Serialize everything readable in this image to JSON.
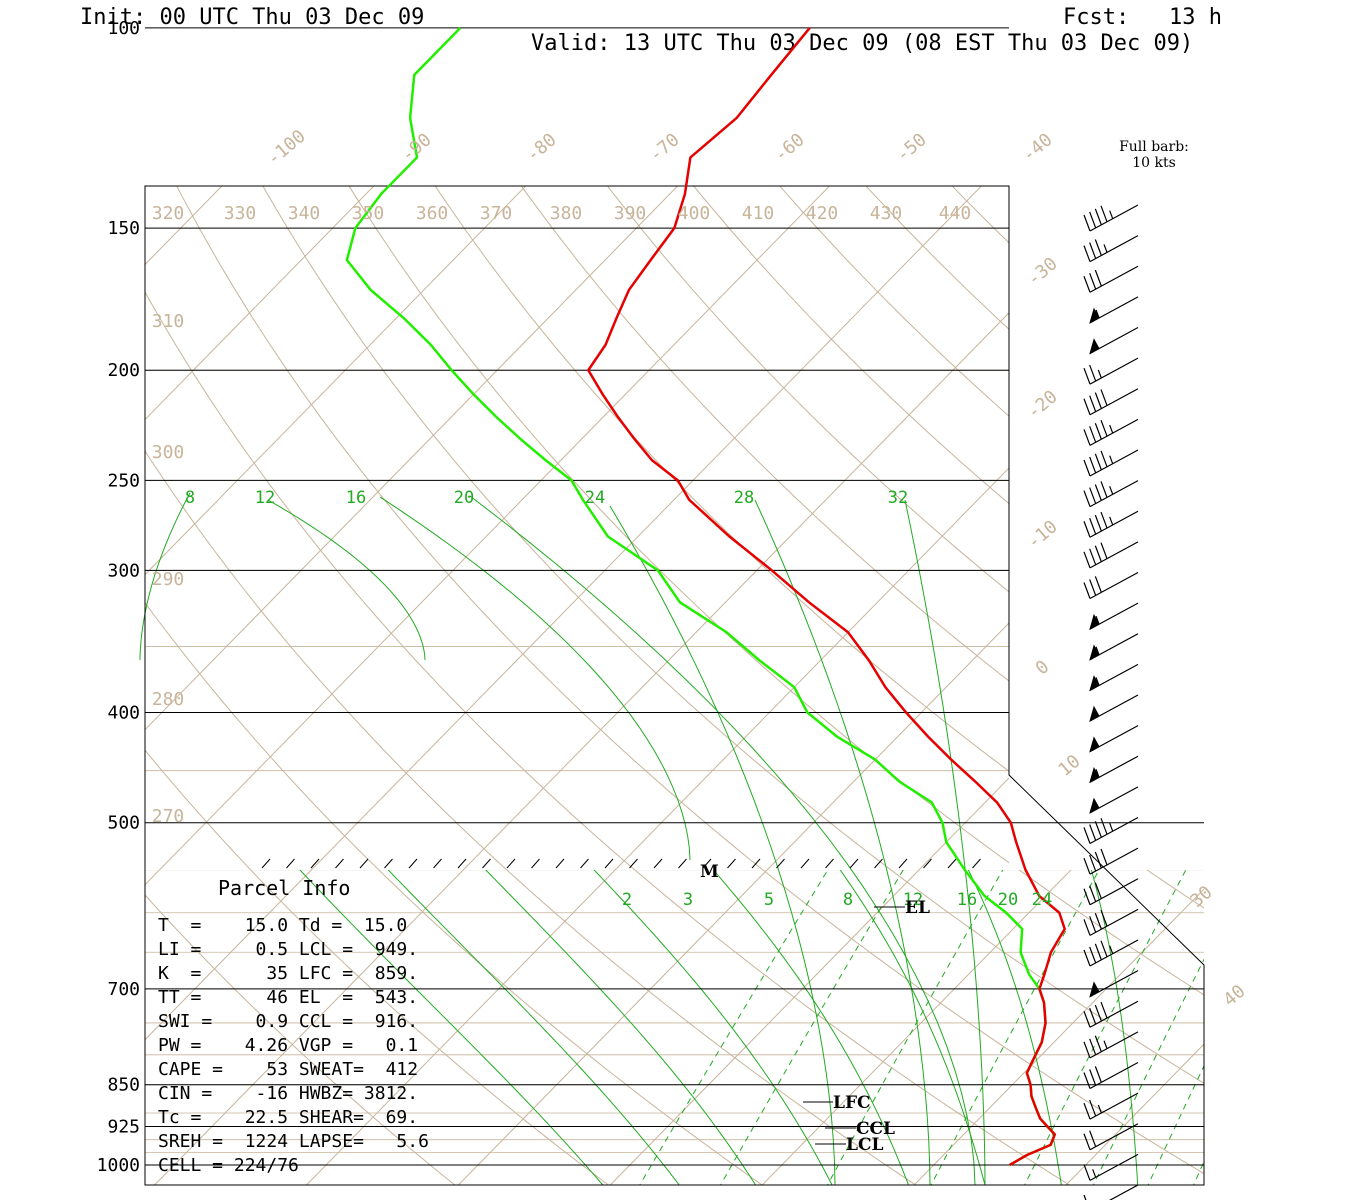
{
  "header": {
    "init": "Init: 00 UTC Thu 03 Dec 09",
    "fcst": "Fcst:   13 h",
    "valid": "Valid: 13 UTC Thu 03 Dec 09 (08 EST Thu 03 Dec 09)"
  },
  "barb_legend": {
    "line1": "Full barb:",
    "line2": "10 kts"
  },
  "colors": {
    "temperature": "#e60000",
    "dewpoint": "#22ee00",
    "isotherm": "#c8b49a",
    "mixing_ratio": "#22aa22",
    "isobar": "#000000"
  },
  "parcel_info": {
    "title": "Parcel Info",
    "rows": [
      "T  =    15.0 Td =  15.0",
      "LI =     0.5 LCL =  949.",
      "K  =      35 LFC =  859.",
      "TT =      46 EL  =  543.",
      "SWI =    0.9 CCL =  916.",
      "PW =    4.26 VGP =   0.1",
      "CAPE =    53 SWEAT=  412",
      "CIN =    -16 HWBZ= 3812.",
      "Tc =    22.5 SHEAR=  69.",
      "SREH =  1224 LAPSE=   5.6",
      "CELL = 224/76"
    ]
  },
  "chart_data": {
    "type": "line",
    "title": "",
    "y_axis": {
      "scale": "log",
      "ticks": [
        "100",
        "150",
        "200",
        "250",
        "300",
        "400",
        "500",
        "700",
        "850",
        "925",
        "1000"
      ]
    },
    "isotherm_labels": [
      "-100",
      "-90",
      "-80",
      "-70",
      "-60",
      "-50",
      "-40",
      "-30",
      "-20",
      "-10",
      "0",
      "10",
      "30",
      "40"
    ],
    "theta_labels": [
      "320",
      "330",
      "340",
      "350",
      "360",
      "370",
      "380",
      "390",
      "400",
      "410",
      "420",
      "430",
      "440",
      "310",
      "300",
      "290",
      "280",
      "270"
    ],
    "mixing_ratio_labels_upper": [
      "8",
      "12",
      "16",
      "20",
      "24",
      "28",
      "32"
    ],
    "mixing_ratio_labels_lower": [
      "2",
      "3",
      "5",
      "8",
      "12",
      "16",
      "20",
      "24"
    ],
    "level_markers": [
      "M",
      "EL",
      "LFC",
      "CCL",
      "LCL"
    ],
    "series": [
      {
        "pressure_hPa": [
          1000,
          980,
          960,
          940,
          925,
          910,
          890,
          870,
          850,
          830,
          810,
          800,
          780,
          750,
          720,
          700,
          680,
          650,
          620,
          600,
          580,
          550,
          520,
          500,
          480,
          460,
          440,
          420,
          400,
          380,
          360,
          340,
          320,
          300,
          280,
          260,
          250,
          240,
          230,
          220,
          210,
          200,
          190,
          180,
          170,
          160,
          150,
          140,
          130,
          120,
          110,
          100
        ],
        "temperature_C": [
          15.0,
          15.5,
          16.4,
          16.0,
          15.0,
          14.0,
          13.0,
          12.0,
          11.2,
          10.2,
          9.8,
          9.6,
          9.2,
          8.2,
          6.8,
          5.6,
          5.0,
          4.0,
          3.4,
          2.0,
          -0.4,
          -3.0,
          -5.4,
          -7.0,
          -9.2,
          -12.0,
          -15.0,
          -18.0,
          -21.0,
          -24.0,
          -26.8,
          -30.0,
          -34.5,
          -39.0,
          -44.0,
          -49.0,
          -51.0,
          -54.0,
          -56.5,
          -59.0,
          -61.5,
          -64.0,
          -64.5,
          -65.5,
          -66.5,
          -67.0,
          -67.5,
          -69.0,
          -71.0,
          -70.5,
          -71.0,
          -71.5
        ]
      },
      {
        "pressure_hPa": [
          1000,
          980,
          960,
          940,
          925,
          910,
          890,
          870,
          850,
          830,
          810,
          800,
          780,
          750,
          720,
          700,
          680,
          650,
          620,
          600,
          580,
          550,
          520,
          500,
          480,
          460,
          440,
          420,
          400,
          380,
          360,
          340,
          320,
          300,
          280,
          260,
          250,
          240,
          230,
          220,
          210,
          200,
          190,
          180,
          170,
          160,
          150,
          140,
          130,
          120,
          110,
          100
        ],
        "dewpoint_C": [
          15.0,
          15.5,
          16.4,
          16.0,
          15.0,
          14.0,
          13.0,
          12.0,
          11.2,
          10.2,
          9.8,
          9.6,
          9.2,
          8.2,
          6.8,
          5.6,
          4.0,
          2.0,
          0.6,
          -1.5,
          -4.0,
          -7.0,
          -10.0,
          -11.5,
          -13.5,
          -17.0,
          -20.0,
          -24.0,
          -27.5,
          -30.0,
          -34.0,
          -38.0,
          -43.0,
          -46.5,
          -52.0,
          -56.0,
          -58.0,
          -61.0,
          -64.0,
          -67.0,
          -70.0,
          -73.0,
          -76.0,
          -79.5,
          -83.5,
          -87.0,
          -88.5,
          -89.0,
          -89.0,
          -92.0,
          -94.5,
          -94.5
        ]
      }
    ],
    "wind_barbs": {
      "legend": "Full barb: 10 kts",
      "speeds_kt": [
        45,
        35,
        30,
        55,
        50,
        25,
        40,
        45,
        45,
        45,
        45,
        40,
        30,
        55,
        55,
        55,
        50,
        50,
        55,
        50,
        45,
        40,
        30,
        40,
        45,
        50,
        40,
        35,
        30,
        25,
        20,
        15,
        10
      ]
    }
  }
}
